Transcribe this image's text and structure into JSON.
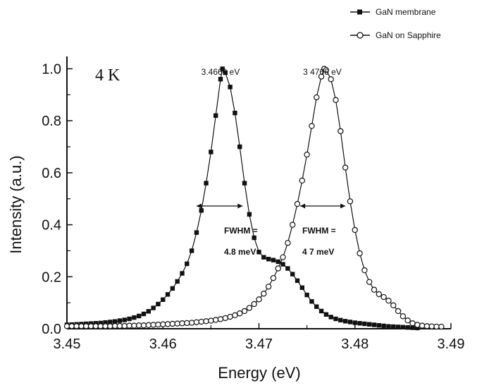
{
  "chart_data": {
    "type": "scatter",
    "xlabel": "Energy (eV)",
    "ylabel": "Intensity (a.u.)",
    "xlim": [
      3.45,
      3.49
    ],
    "ylim": [
      0.0,
      1.05
    ],
    "x_ticks": [
      "3.45",
      "3.46",
      "3.47",
      "3.48",
      "3.49"
    ],
    "y_ticks": [
      "0.0",
      "0.2",
      "0.4",
      "0.6",
      "0.8",
      "1.0"
    ],
    "temperature_label": "4 K",
    "legend_position": "top-right",
    "series": [
      {
        "name": "GaN membrane",
        "marker": "filled-square",
        "color": "#111111",
        "peak_label": "3.4660 eV",
        "peak_x": 3.466,
        "fwhm_line1": "FWHM =",
        "fwhm_line2": "4.8 meV",
        "fwhm_range": [
          3.4635,
          3.4683
        ],
        "fwhm_y": 0.5,
        "points": [
          [
            3.45,
            0.015
          ],
          [
            3.4505,
            0.016
          ],
          [
            3.451,
            0.017
          ],
          [
            3.4515,
            0.018
          ],
          [
            3.452,
            0.019
          ],
          [
            3.4525,
            0.02
          ],
          [
            3.453,
            0.021
          ],
          [
            3.4535,
            0.022
          ],
          [
            3.454,
            0.024
          ],
          [
            3.4545,
            0.026
          ],
          [
            3.455,
            0.028
          ],
          [
            3.4555,
            0.031
          ],
          [
            3.456,
            0.034
          ],
          [
            3.4565,
            0.038
          ],
          [
            3.457,
            0.043
          ],
          [
            3.4575,
            0.049
          ],
          [
            3.458,
            0.057
          ],
          [
            3.4585,
            0.067
          ],
          [
            3.459,
            0.08
          ],
          [
            3.4595,
            0.095
          ],
          [
            3.46,
            0.112
          ],
          [
            3.4605,
            0.132
          ],
          [
            3.461,
            0.155
          ],
          [
            3.4615,
            0.182
          ],
          [
            3.462,
            0.213
          ],
          [
            3.4625,
            0.25
          ],
          [
            3.463,
            0.3
          ],
          [
            3.4635,
            0.37
          ],
          [
            3.464,
            0.455
          ],
          [
            3.4645,
            0.56
          ],
          [
            3.465,
            0.68
          ],
          [
            3.4655,
            0.82
          ],
          [
            3.466,
            0.96
          ],
          [
            3.4662,
            1.0
          ],
          [
            3.4665,
            0.985
          ],
          [
            3.467,
            0.93
          ],
          [
            3.4675,
            0.83
          ],
          [
            3.468,
            0.7
          ],
          [
            3.4685,
            0.56
          ],
          [
            3.469,
            0.44
          ],
          [
            3.4695,
            0.35
          ],
          [
            3.47,
            0.295
          ],
          [
            3.4705,
            0.275
          ],
          [
            3.471,
            0.268
          ],
          [
            3.4715,
            0.264
          ],
          [
            3.472,
            0.258
          ],
          [
            3.4725,
            0.248
          ],
          [
            3.473,
            0.232
          ],
          [
            3.4735,
            0.21
          ],
          [
            3.474,
            0.185
          ],
          [
            3.4745,
            0.158
          ],
          [
            3.475,
            0.13
          ],
          [
            3.4755,
            0.105
          ],
          [
            3.476,
            0.085
          ],
          [
            3.4765,
            0.068
          ],
          [
            3.477,
            0.055
          ],
          [
            3.4775,
            0.045
          ],
          [
            3.478,
            0.038
          ],
          [
            3.4785,
            0.033
          ],
          [
            3.479,
            0.029
          ],
          [
            3.4795,
            0.026
          ],
          [
            3.48,
            0.023
          ],
          [
            3.4805,
            0.021
          ],
          [
            3.481,
            0.019
          ],
          [
            3.4815,
            0.017
          ],
          [
            3.482,
            0.015
          ],
          [
            3.4825,
            0.013
          ],
          [
            3.483,
            0.011
          ],
          [
            3.4835,
            0.009
          ],
          [
            3.484,
            0.008
          ],
          [
            3.4845,
            0.007
          ],
          [
            3.485,
            0.006
          ],
          [
            3.4855,
            0.005
          ],
          [
            3.486,
            0.004
          ],
          [
            3.4865,
            0.003
          ]
        ]
      },
      {
        "name": "GaN on Sapphire",
        "marker": "open-circle",
        "color": "#111111",
        "peak_label": "3 4766 eV",
        "peak_x": 3.4766,
        "fwhm_line1": "FWHM =",
        "fwhm_line2": "4 7 meV",
        "fwhm_range": [
          3.4743,
          3.479
        ],
        "fwhm_y": 0.5,
        "points": [
          [
            3.45,
            0.01
          ],
          [
            3.4505,
            0.01
          ],
          [
            3.451,
            0.01
          ],
          [
            3.4515,
            0.01
          ],
          [
            3.452,
            0.01
          ],
          [
            3.4525,
            0.01
          ],
          [
            3.453,
            0.01
          ],
          [
            3.4535,
            0.01
          ],
          [
            3.454,
            0.01
          ],
          [
            3.4545,
            0.01
          ],
          [
            3.455,
            0.011
          ],
          [
            3.4555,
            0.011
          ],
          [
            3.456,
            0.011
          ],
          [
            3.4565,
            0.012
          ],
          [
            3.457,
            0.012
          ],
          [
            3.4575,
            0.013
          ],
          [
            3.458,
            0.013
          ],
          [
            3.4585,
            0.014
          ],
          [
            3.459,
            0.015
          ],
          [
            3.4595,
            0.016
          ],
          [
            3.46,
            0.017
          ],
          [
            3.4605,
            0.018
          ],
          [
            3.461,
            0.019
          ],
          [
            3.4615,
            0.02
          ],
          [
            3.462,
            0.021
          ],
          [
            3.4625,
            0.022
          ],
          [
            3.463,
            0.023
          ],
          [
            3.4635,
            0.025
          ],
          [
            3.464,
            0.027
          ],
          [
            3.4645,
            0.029
          ],
          [
            3.465,
            0.031
          ],
          [
            3.4655,
            0.034
          ],
          [
            3.466,
            0.037
          ],
          [
            3.4665,
            0.041
          ],
          [
            3.467,
            0.046
          ],
          [
            3.4675,
            0.052
          ],
          [
            3.468,
            0.059
          ],
          [
            3.4685,
            0.068
          ],
          [
            3.469,
            0.08
          ],
          [
            3.4695,
            0.095
          ],
          [
            3.47,
            0.113
          ],
          [
            3.4705,
            0.135
          ],
          [
            3.471,
            0.162
          ],
          [
            3.4715,
            0.195
          ],
          [
            3.472,
            0.232
          ],
          [
            3.4725,
            0.275
          ],
          [
            3.473,
            0.33
          ],
          [
            3.4735,
            0.4
          ],
          [
            3.474,
            0.48
          ],
          [
            3.4745,
            0.57
          ],
          [
            3.475,
            0.67
          ],
          [
            3.4755,
            0.78
          ],
          [
            3.476,
            0.89
          ],
          [
            3.4765,
            0.97
          ],
          [
            3.4768,
            1.0
          ],
          [
            3.477,
            0.995
          ],
          [
            3.4775,
            0.96
          ],
          [
            3.478,
            0.88
          ],
          [
            3.4785,
            0.76
          ],
          [
            3.479,
            0.62
          ],
          [
            3.4795,
            0.49
          ],
          [
            3.48,
            0.38
          ],
          [
            3.4805,
            0.29
          ],
          [
            3.481,
            0.225
          ],
          [
            3.4815,
            0.18
          ],
          [
            3.482,
            0.15
          ],
          [
            3.4825,
            0.133
          ],
          [
            3.483,
            0.122
          ],
          [
            3.4835,
            0.108
          ],
          [
            3.484,
            0.09
          ],
          [
            3.4845,
            0.068
          ],
          [
            3.485,
            0.048
          ],
          [
            3.4855,
            0.032
          ],
          [
            3.486,
            0.021
          ],
          [
            3.4865,
            0.015
          ],
          [
            3.487,
            0.012
          ],
          [
            3.4875,
            0.01
          ],
          [
            3.488,
            0.009
          ],
          [
            3.4885,
            0.008
          ],
          [
            3.489,
            0.008
          ]
        ]
      }
    ]
  }
}
